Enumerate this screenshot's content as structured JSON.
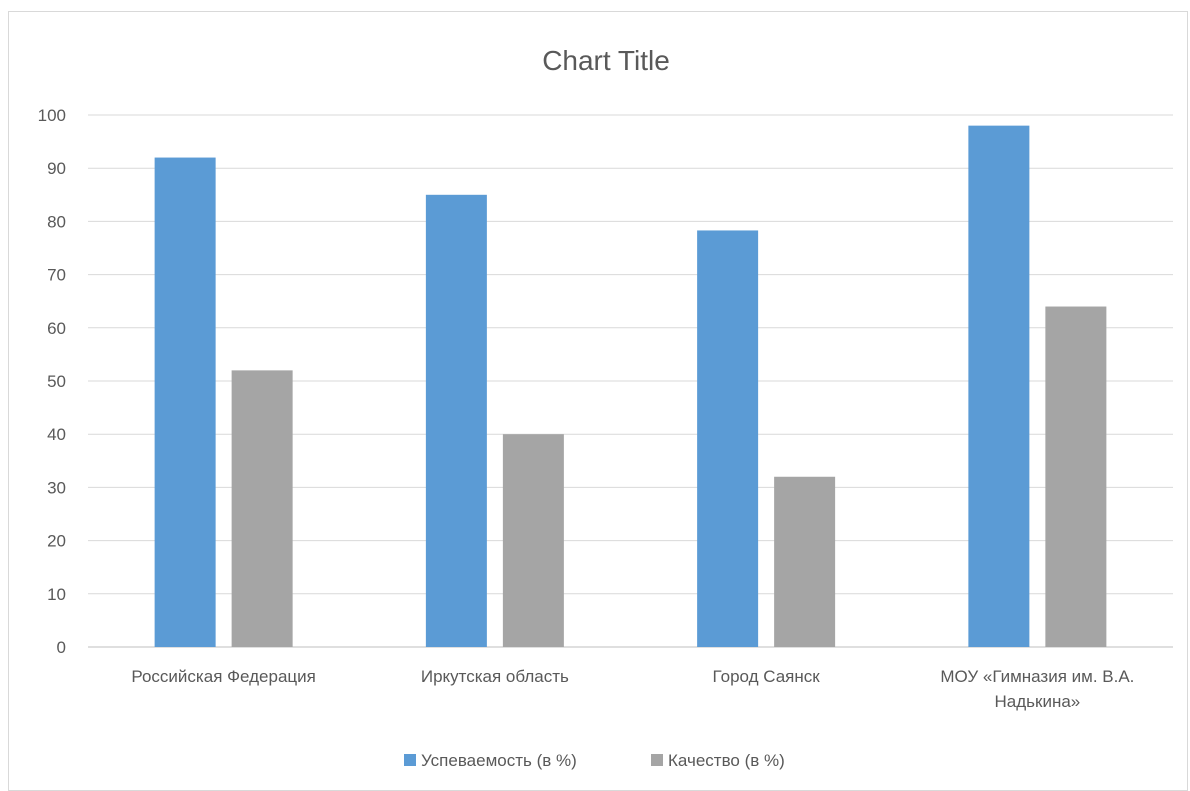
{
  "chart_data": {
    "type": "bar",
    "title": "Chart Title",
    "xlabel": "",
    "ylabel": "",
    "ylim": [
      0,
      100
    ],
    "yticks": [
      0,
      10,
      20,
      30,
      40,
      50,
      60,
      70,
      80,
      90,
      100
    ],
    "grid": true,
    "legend_position": "bottom",
    "categories": [
      "Российская Федерация",
      "Иркутская область",
      "Город Саянск",
      "МОУ «Гимназия им. В.А. Надькина»"
    ],
    "category_lines": [
      [
        "Российская Федерация"
      ],
      [
        "Иркутская область"
      ],
      [
        "Город Саянск"
      ],
      [
        "МОУ «Гимназия им. В.А.",
        "Надькина»"
      ]
    ],
    "series": [
      {
        "name": "Успеваемость (в %)",
        "color": "#5b9bd5",
        "values": [
          92,
          85,
          78.3,
          98
        ]
      },
      {
        "name": "Качество (в %)",
        "color": "#a5a5a5",
        "values": [
          52,
          40,
          32,
          64
        ]
      }
    ]
  }
}
